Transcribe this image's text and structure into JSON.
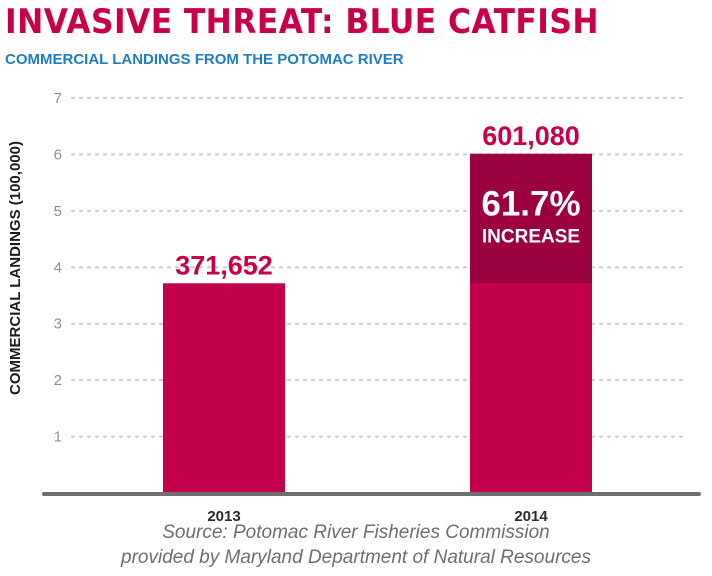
{
  "chart_data": {
    "type": "bar",
    "title": "INVASIVE THREAT: BLUE CATFISH",
    "subtitle": "COMMERCIAL LANDINGS FROM THE POTOMAC RIVER",
    "xlabel": "",
    "ylabel": "COMMERCIAL LANDINGS (100,000)",
    "categories": [
      "2013",
      "2014"
    ],
    "values": [
      3.71652,
      6.0108
    ],
    "data_labels": [
      "371,652",
      "601,080"
    ],
    "yticks": [
      "1",
      "2",
      "3",
      "4",
      "5",
      "6",
      "7"
    ],
    "ylim": [
      0,
      7
    ],
    "grid": true,
    "annotation": {
      "category": "2014",
      "from": 3.71652,
      "to": 6.0108,
      "value": "61.7%",
      "label": "INCREASE"
    },
    "colors": {
      "bar": "#c2004c",
      "increase": "#9b0040",
      "grid": "#c9c9c9",
      "axis": "#6e6e6e"
    }
  },
  "source": {
    "line1": "Source: Potomac River Fisheries Commission",
    "line2": "provided by Maryland Department of Natural Resources"
  }
}
